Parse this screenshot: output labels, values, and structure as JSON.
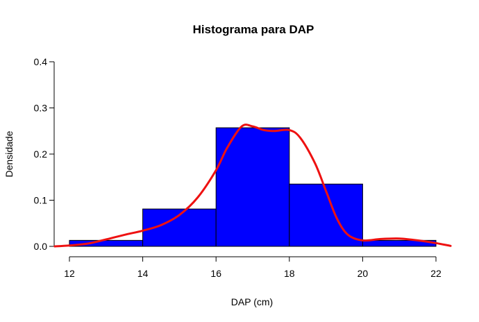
{
  "chart_data": {
    "type": "bar",
    "title": "Histograma para DAP",
    "xlabel": "DAP (cm)",
    "ylabel": "Densidade",
    "bins": [
      [
        12,
        14
      ],
      [
        14,
        16
      ],
      [
        16,
        18
      ],
      [
        18,
        20
      ],
      [
        20,
        22
      ]
    ],
    "values": [
      0.013,
      0.081,
      0.257,
      0.135,
      0.013
    ],
    "xlim": [
      12,
      22
    ],
    "ylim": [
      0,
      0.4
    ],
    "x_ticks": [
      12,
      14,
      16,
      18,
      20,
      22
    ],
    "y_ticks": [
      0.0,
      0.1,
      0.2,
      0.3,
      0.4
    ],
    "y_tick_labels": [
      "0.0",
      "0.1",
      "0.2",
      "0.3",
      "0.4"
    ],
    "bar_color": "#0000ff",
    "density_curve": {
      "color": "#ee1111",
      "x": [
        11.6,
        12.0,
        12.5,
        13.0,
        13.5,
        14.0,
        14.5,
        15.0,
        15.5,
        16.0,
        16.3,
        16.7,
        17.0,
        17.3,
        17.6,
        18.0,
        18.3,
        18.7,
        19.0,
        19.3,
        19.6,
        20.0,
        20.5,
        21.0,
        21.5,
        22.0,
        22.4
      ],
      "y": [
        0.0,
        0.002,
        0.006,
        0.015,
        0.025,
        0.034,
        0.046,
        0.068,
        0.106,
        0.165,
        0.213,
        0.26,
        0.26,
        0.252,
        0.25,
        0.252,
        0.235,
        0.18,
        0.12,
        0.06,
        0.025,
        0.013,
        0.016,
        0.017,
        0.013,
        0.007,
        0.001
      ]
    },
    "grid": false,
    "legend": "none"
  }
}
